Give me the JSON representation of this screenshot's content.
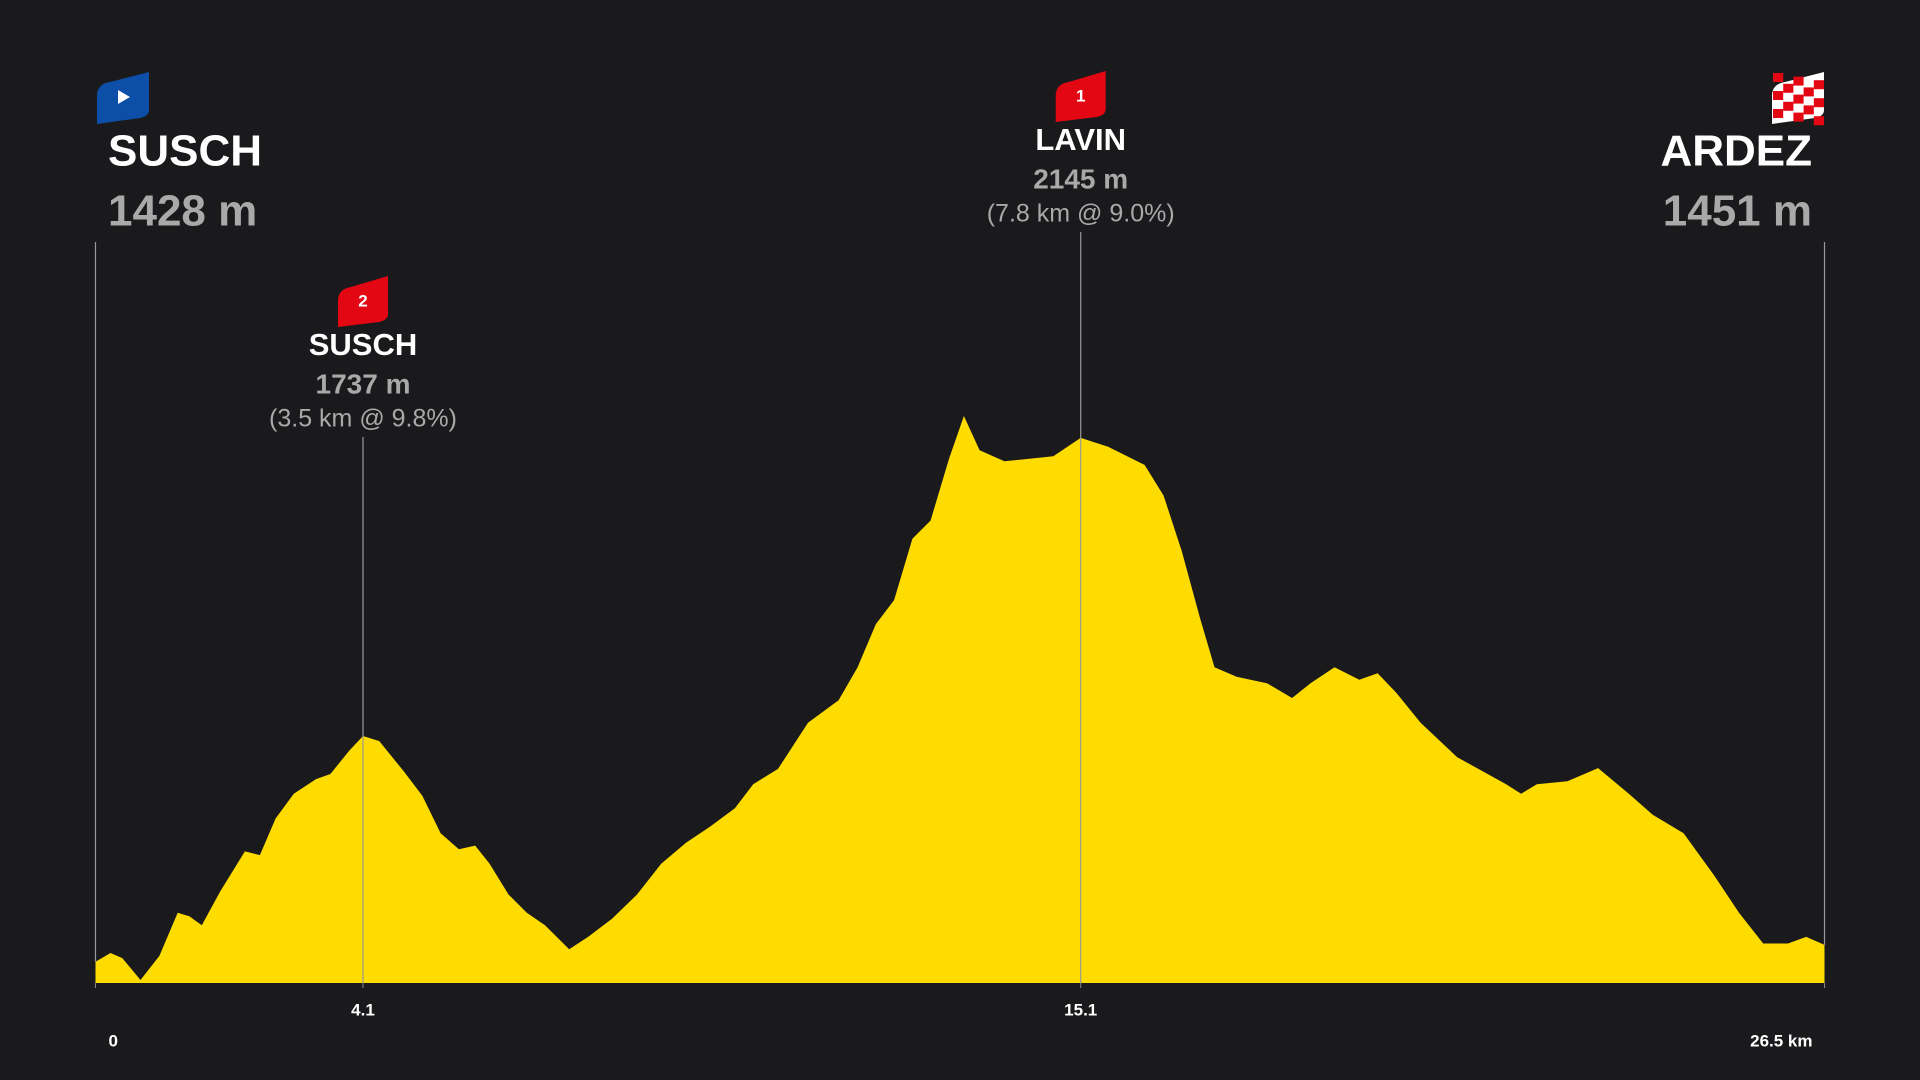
{
  "chart_data": {
    "type": "area",
    "color": "#ffdc00",
    "start": {
      "name": "SUSCH",
      "label": "1428 m",
      "color": "#0d4fa8"
    },
    "finish": {
      "name": "ARDEZ",
      "label": "1451 m"
    },
    "climbs": [
      {
        "category": "2",
        "name": "SUSCH",
        "x": 4.1,
        "label": "1737 m",
        "detail": "(3.5 km @ 9.8%)",
        "color": "#e30613"
      },
      {
        "category": "1",
        "name": "LAVIN",
        "x": 15.1,
        "label": "2145 m",
        "detail": "(7.8 km @ 9.0%)",
        "color": "#e30613"
      }
    ],
    "xlim": [
      0,
      26.5
    ],
    "xticks": [
      0,
      4.1,
      15.1,
      {
        "value": 26.5,
        "label": "26.5 km"
      }
    ],
    "x": [
      0,
      0.23,
      0.41,
      0.69,
      0.98,
      1.26,
      1.44,
      1.63,
      1.91,
      2.29,
      2.52,
      2.76,
      3.04,
      3.38,
      3.6,
      3.89,
      4.1,
      4.35,
      4.73,
      5.01,
      5.29,
      5.57,
      5.82,
      6.04,
      6.33,
      6.61,
      6.89,
      7.26,
      7.55,
      7.92,
      8.3,
      8.67,
      9.05,
      9.42,
      9.8,
      10.08,
      10.46,
      10.92,
      11.39,
      11.68,
      11.96,
      12.24,
      12.52,
      12.8,
      13.08,
      13.31,
      13.55,
      13.93,
      14.68,
      15.1,
      15.52,
      16.08,
      16.37,
      16.65,
      16.93,
      17.15,
      17.49,
      17.96,
      18.34,
      18.62,
      18.99,
      19.37,
      19.65,
      19.93,
      20.31,
      20.87,
      21.62,
      21.85,
      22.09,
      22.56,
      23.03,
      23.5,
      23.87,
      24.34,
      24.81,
      25.19,
      25.56,
      25.94,
      26.22,
      26.5
    ],
    "values": [
      1428,
      1440,
      1433,
      1403,
      1436,
      1495,
      1490,
      1478,
      1524,
      1579,
      1574,
      1624,
      1658,
      1678,
      1685,
      1717,
      1737,
      1730,
      1688,
      1655,
      1604,
      1582,
      1587,
      1562,
      1520,
      1495,
      1478,
      1445,
      1462,
      1487,
      1520,
      1562,
      1591,
      1613,
      1638,
      1671,
      1692,
      1755,
      1786,
      1831,
      1890,
      1923,
      2007,
      2032,
      2116,
      2175,
      2128,
      2113,
      2120,
      2145,
      2133,
      2108,
      2066,
      1990,
      1898,
      1831,
      1818,
      1809,
      1789,
      1809,
      1831,
      1814,
      1823,
      1797,
      1755,
      1708,
      1671,
      1658,
      1671,
      1675,
      1693,
      1658,
      1629,
      1604,
      1546,
      1495,
      1453,
      1453,
      1462,
      1451
    ]
  }
}
